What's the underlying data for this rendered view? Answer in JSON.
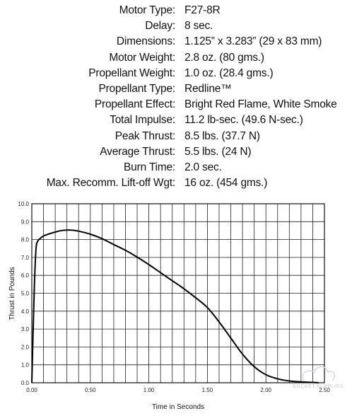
{
  "specs": [
    {
      "label": "Motor Type:",
      "value": "F27-8R"
    },
    {
      "label": "Delay:",
      "value": " 8 sec."
    },
    {
      "label": "Dimensions:",
      "value": "1.125” x 3.283” (29 x 83 mm)"
    },
    {
      "label": "Motor Weight:",
      "value": "2.8 oz. (80 gms.)"
    },
    {
      "label": "Propellant Weight:",
      "value": "1.0 oz. (28.4 gms.)"
    },
    {
      "label": "Propellant Type:",
      "value": "Redline™"
    },
    {
      "label": "Propellant Effect:",
      "value": "Bright Red Flame, White Smoke"
    },
    {
      "label": "Total Impulse:",
      "value": "11.2 lb-sec. (49.6 N-sec.)"
    },
    {
      "label": "Peak Thrust:",
      "value": "8.5 lbs. (37.7 N)"
    },
    {
      "label": "Average Thrust:",
      "value": "5.5 lbs. (24 N)"
    },
    {
      "label": "Burn Time:",
      "value": "2.0 sec."
    },
    {
      "label": "Max. Recomm. Lift-off Wgt:",
      "value": "16 oz. (454 gms.)"
    }
  ],
  "watermark": "ROCKET.SUPPLIES",
  "chart_data": {
    "type": "line",
    "xlabel": "Time in Seconds",
    "ylabel": "Thrust in Pounds",
    "xlim": [
      0,
      2.5
    ],
    "ylim": [
      0,
      10
    ],
    "grid": true,
    "x_ticks": [
      "0.00",
      "0.50",
      "1.00",
      "1.50",
      "2.00",
      "2.50"
    ],
    "y_ticks": [
      "0.0",
      "1.0",
      "2.0",
      "3.0",
      "4.0",
      "5.0",
      "6.0",
      "7.0",
      "8.0",
      "9.0",
      "10.0"
    ],
    "series": [
      {
        "x": [
          0.0,
          0.02,
          0.035,
          0.05,
          0.07,
          0.1,
          0.15,
          0.2,
          0.25,
          0.3,
          0.35,
          0.4,
          0.5,
          0.6,
          0.7,
          0.8,
          0.9,
          1.0,
          1.1,
          1.2,
          1.3,
          1.4,
          1.5,
          1.6,
          1.7,
          1.8,
          1.9,
          2.0,
          2.1,
          2.2,
          2.3,
          2.4,
          2.45
        ],
        "y": [
          0.0,
          5.0,
          7.4,
          7.9,
          8.05,
          8.2,
          8.32,
          8.42,
          8.5,
          8.53,
          8.52,
          8.47,
          8.3,
          8.05,
          7.72,
          7.4,
          7.02,
          6.6,
          6.15,
          5.7,
          5.25,
          4.75,
          4.2,
          3.4,
          2.5,
          1.6,
          0.9,
          0.45,
          0.22,
          0.1,
          0.05,
          0.02,
          0.0
        ]
      }
    ]
  }
}
